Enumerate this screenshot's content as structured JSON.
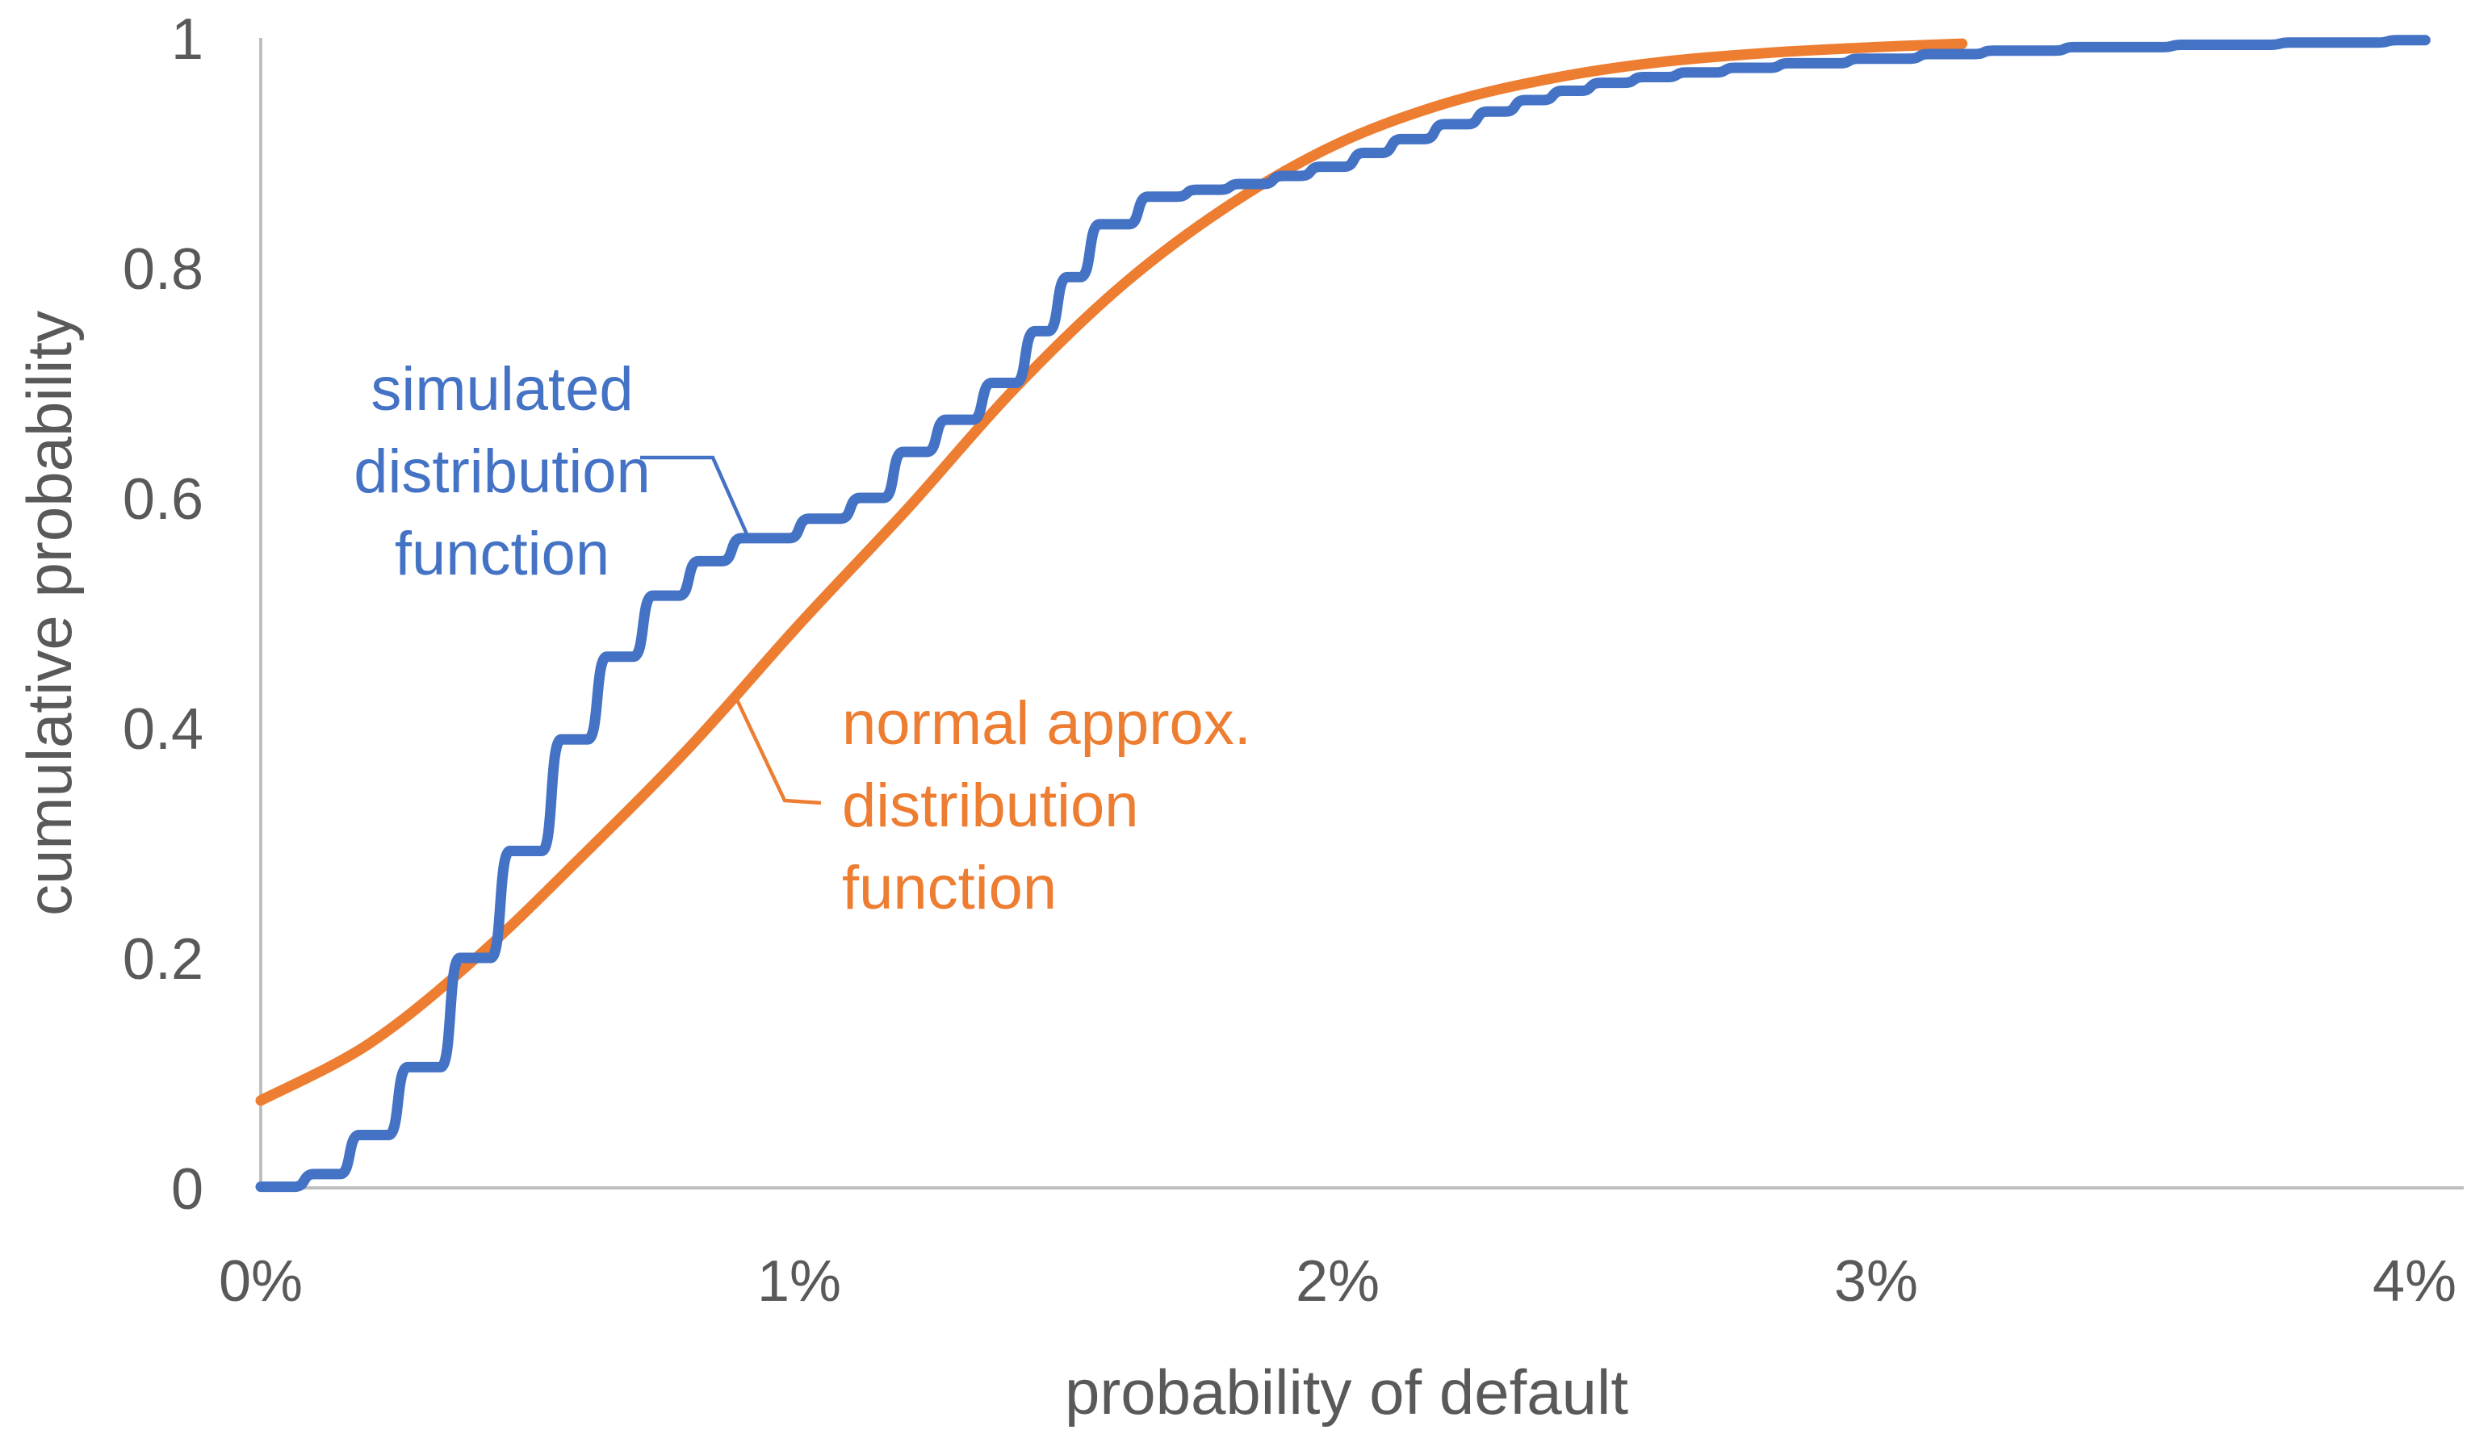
{
  "chart_data": {
    "type": "line",
    "title": "",
    "xlabel": "probability of default",
    "ylabel": "cumulative probability",
    "x_unit": "%",
    "xlim": [
      0,
      4
    ],
    "ylim": [
      0,
      1
    ],
    "grid": false,
    "legend_position": "inline-annotations",
    "xtick_values": [
      0,
      1,
      2,
      3,
      4
    ],
    "xtick_labels": [
      "0%",
      "1%",
      "2%",
      "3%",
      "4%"
    ],
    "ytick_values": [
      0,
      0.2,
      0.4,
      0.6,
      0.8,
      1
    ],
    "ytick_labels": [
      "0",
      "0.2",
      "0.4",
      "0.6",
      "0.8",
      "1"
    ],
    "series": [
      {
        "name": "simulated distribution function",
        "style": "smoothed-step",
        "color": "#4472C4",
        "start": [
          0.0,
          0.001
        ],
        "steps": [
          [
            0.081,
            0.012
          ],
          [
            0.165,
            0.046
          ],
          [
            0.255,
            0.105
          ],
          [
            0.352,
            0.2
          ],
          [
            0.445,
            0.293
          ],
          [
            0.54,
            0.39
          ],
          [
            0.625,
            0.462
          ],
          [
            0.71,
            0.515
          ],
          [
            0.795,
            0.545
          ],
          [
            0.875,
            0.565
          ],
          [
            1.0,
            0.582
          ],
          [
            1.095,
            0.6
          ],
          [
            1.175,
            0.64
          ],
          [
            1.255,
            0.668
          ],
          [
            1.34,
            0.7
          ],
          [
            1.42,
            0.745
          ],
          [
            1.48,
            0.792
          ],
          [
            1.54,
            0.838
          ],
          [
            1.63,
            0.862
          ],
          [
            1.72,
            0.868
          ],
          [
            1.8,
            0.873
          ],
          [
            1.88,
            0.88
          ],
          [
            1.95,
            0.888
          ],
          [
            2.03,
            0.9
          ],
          [
            2.1,
            0.912
          ],
          [
            2.18,
            0.925
          ],
          [
            2.26,
            0.936
          ],
          [
            2.33,
            0.946
          ],
          [
            2.4,
            0.954
          ],
          [
            2.47,
            0.961
          ],
          [
            2.55,
            0.966
          ],
          [
            2.63,
            0.97
          ],
          [
            2.72,
            0.974
          ],
          [
            2.82,
            0.978
          ],
          [
            2.95,
            0.982
          ],
          [
            3.08,
            0.986
          ],
          [
            3.2,
            0.989
          ],
          [
            3.35,
            0.992
          ],
          [
            3.55,
            0.994
          ],
          [
            3.75,
            0.996
          ],
          [
            3.95,
            0.998
          ]
        ],
        "end": [
          4.02,
          0.998
        ]
      },
      {
        "name": "normal approx. distribution function",
        "style": "smooth",
        "color": "#ED7D31",
        "points": [
          [
            0.0,
            0.076
          ],
          [
            0.2,
            0.125
          ],
          [
            0.4,
            0.2
          ],
          [
            0.6,
            0.29
          ],
          [
            0.8,
            0.385
          ],
          [
            1.0,
            0.49
          ],
          [
            1.2,
            0.59
          ],
          [
            1.4,
            0.695
          ],
          [
            1.6,
            0.785
          ],
          [
            1.8,
            0.855
          ],
          [
            2.0,
            0.908
          ],
          [
            2.2,
            0.943
          ],
          [
            2.4,
            0.965
          ],
          [
            2.6,
            0.979
          ],
          [
            2.8,
            0.987
          ],
          [
            3.0,
            0.992
          ],
          [
            3.16,
            0.995
          ]
        ]
      }
    ],
    "annotations": [
      {
        "target_series": "simulated distribution function",
        "lines": [
          "simulated",
          "distribution",
          "function"
        ],
        "color": "#4472C4",
        "align": "center",
        "callout_points_to": [
          0.905,
          0.565
        ]
      },
      {
        "target_series": "normal approx. distribution function",
        "lines": [
          "normal approx.",
          "distribution",
          "function"
        ],
        "color": "#ED7D31",
        "align": "left",
        "callout_points_to": [
          0.883,
          0.426
        ]
      }
    ]
  },
  "colors": {
    "background": "#FFFFFF",
    "axis_line": "#BFBFBF",
    "axis_text": "#595959",
    "simulated_series": "#4472C4",
    "normal_series": "#ED7D31"
  }
}
